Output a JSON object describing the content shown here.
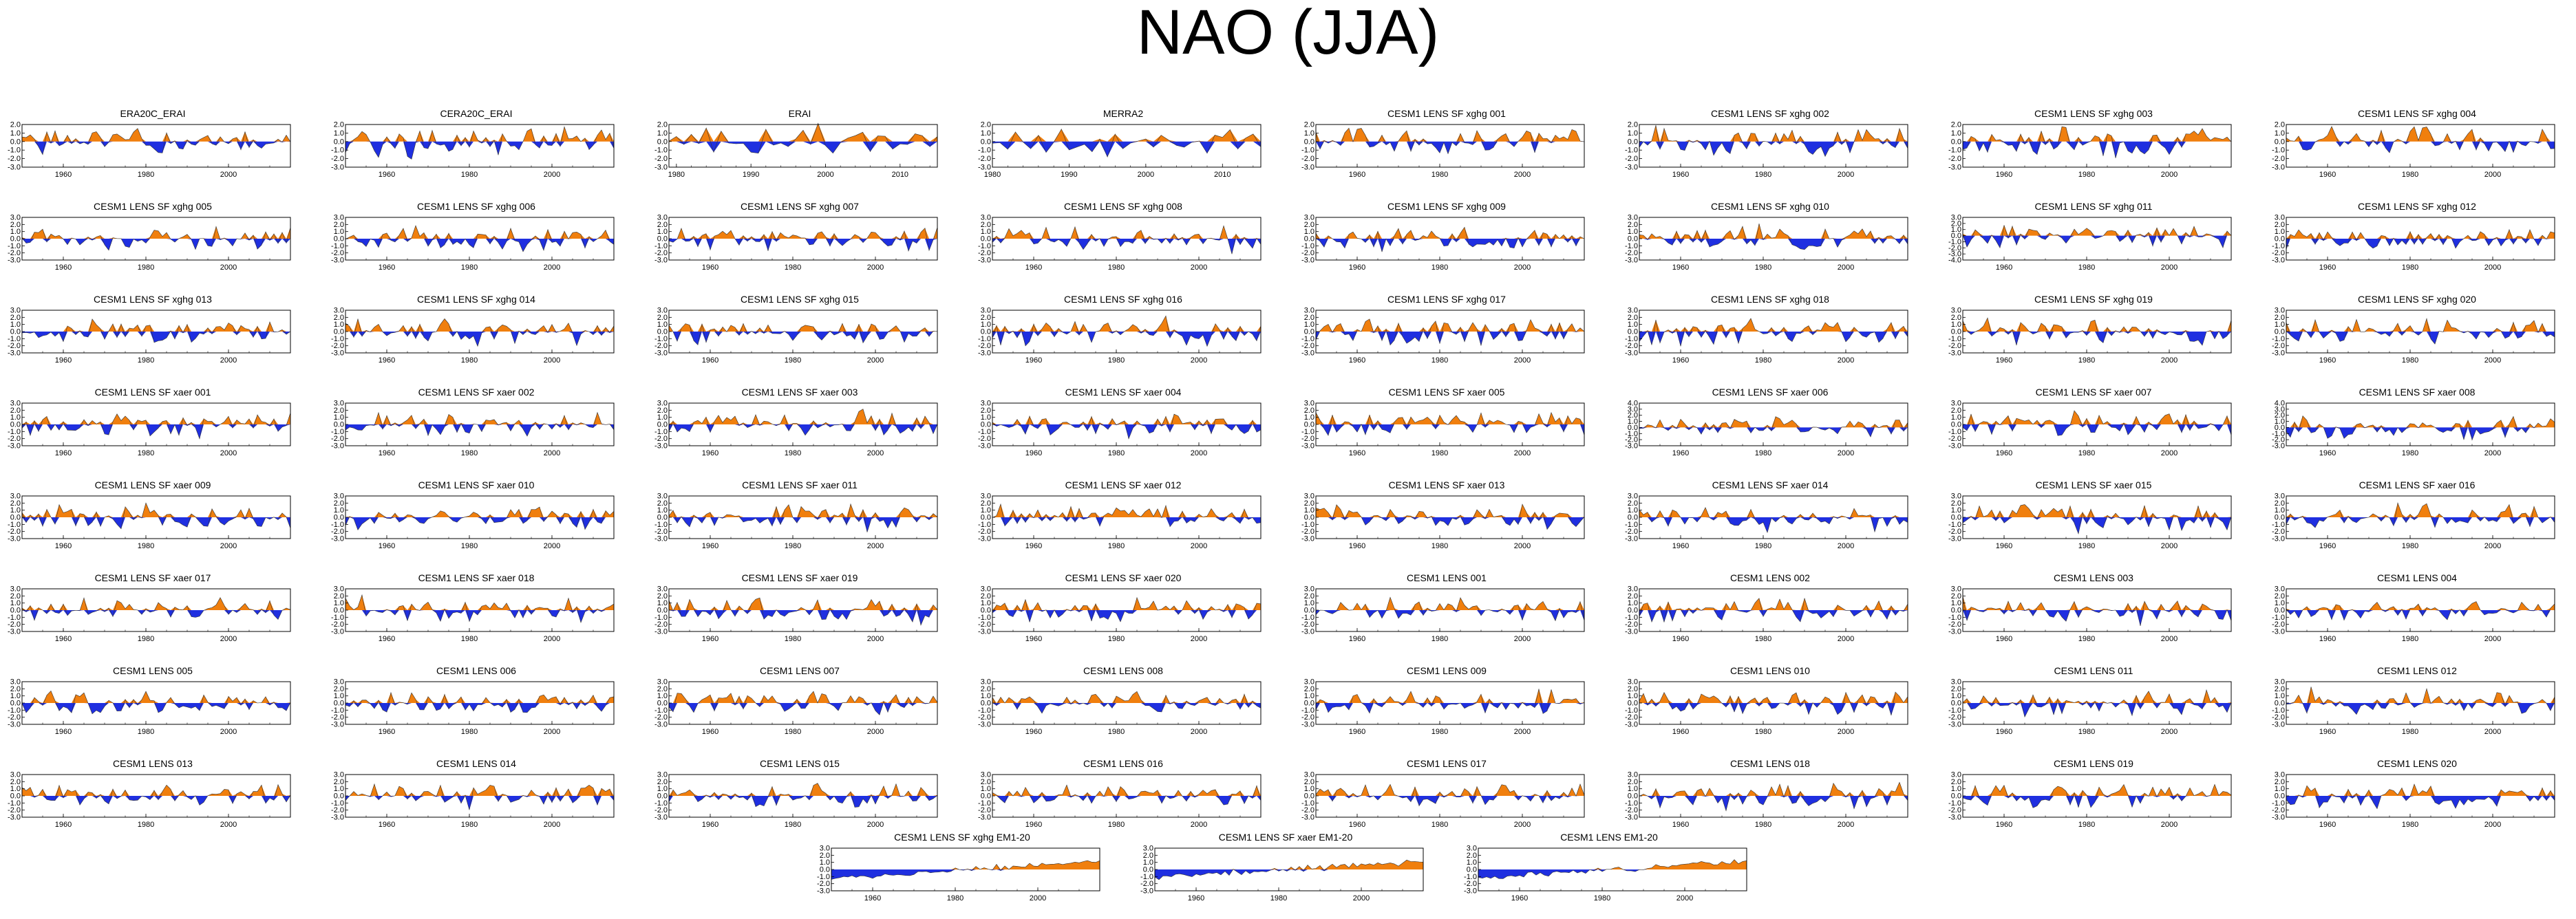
{
  "title": "NAO (JJA)",
  "colors": {
    "positive": "#f07f0e",
    "negative": "#1f2fe0",
    "axis": "#000000"
  },
  "y_ticks_default": [
    "3.0",
    "2.0",
    "1.0",
    "0.0",
    "-1.0",
    "-2.0",
    "-3.0"
  ],
  "chart_data": {
    "type": "area",
    "layout": "8 columns x 8 rows of panels plus a centered bottom row of 3 ensemble-mean panels",
    "grid": false,
    "fill_rule": "orange above zero, blue below zero",
    "ylim": [
      -3,
      3
    ],
    "panels": [
      {
        "name": "ERA20C_ERAI",
        "xlim": [
          1950,
          2015
        ],
        "xticks": [
          1960,
          1980,
          2000
        ],
        "ylim": [
          -3,
          2
        ],
        "seed": 1
      },
      {
        "name": "CERA20C_ERAI",
        "xlim": [
          1950,
          2015
        ],
        "xticks": [
          1960,
          1980,
          2000
        ],
        "ylim": [
          -3,
          2
        ],
        "seed": 2
      },
      {
        "name": "ERAI",
        "xlim": [
          1979,
          2015
        ],
        "xticks": [
          1980,
          1990,
          2000,
          2010
        ],
        "ylim": [
          -3,
          2
        ],
        "seed": 3
      },
      {
        "name": "MERRA2",
        "xlim": [
          1980,
          2015
        ],
        "xticks": [
          1980,
          1990,
          2000,
          2010
        ],
        "ylim": [
          -3,
          2
        ],
        "seed": 4
      },
      {
        "name": "CESM1 LENS SF xghg 001",
        "xlim": [
          1950,
          2015
        ],
        "xticks": [
          1960,
          1980,
          2000
        ],
        "ylim": [
          -3,
          2
        ],
        "seed": 5
      },
      {
        "name": "CESM1 LENS SF xghg 002",
        "xlim": [
          1950,
          2015
        ],
        "xticks": [
          1960,
          1980,
          2000
        ],
        "ylim": [
          -3,
          2
        ],
        "seed": 6
      },
      {
        "name": "CESM1 LENS SF xghg 003",
        "xlim": [
          1950,
          2015
        ],
        "xticks": [
          1960,
          1980,
          2000
        ],
        "ylim": [
          -3,
          2
        ],
        "seed": 7
      },
      {
        "name": "CESM1 LENS SF xghg 004",
        "xlim": [
          1950,
          2015
        ],
        "xticks": [
          1960,
          1980,
          2000
        ],
        "ylim": [
          -3,
          2
        ],
        "seed": 8
      },
      {
        "name": "CESM1 LENS SF xghg 005",
        "xlim": [
          1950,
          2015
        ],
        "xticks": [
          1960,
          1980,
          2000
        ],
        "ylim": [
          -3,
          3
        ],
        "seed": 9
      },
      {
        "name": "CESM1 LENS SF xghg 006",
        "xlim": [
          1950,
          2015
        ],
        "xticks": [
          1960,
          1980,
          2000
        ],
        "ylim": [
          -3,
          3
        ],
        "seed": 10
      },
      {
        "name": "CESM1 LENS SF xghg 007",
        "xlim": [
          1950,
          2015
        ],
        "xticks": [
          1960,
          1980,
          2000
        ],
        "ylim": [
          -3,
          3
        ],
        "seed": 11
      },
      {
        "name": "CESM1 LENS SF xghg 008",
        "xlim": [
          1950,
          2015
        ],
        "xticks": [
          1960,
          1980,
          2000
        ],
        "ylim": [
          -3,
          3
        ],
        "seed": 12
      },
      {
        "name": "CESM1 LENS SF xghg 009",
        "xlim": [
          1950,
          2015
        ],
        "xticks": [
          1960,
          1980,
          2000
        ],
        "ylim": [
          -3,
          3
        ],
        "seed": 13
      },
      {
        "name": "CESM1 LENS SF xghg 010",
        "xlim": [
          1950,
          2015
        ],
        "xticks": [
          1960,
          1980,
          2000
        ],
        "ylim": [
          -3,
          3
        ],
        "seed": 14
      },
      {
        "name": "CESM1 LENS SF xghg 011",
        "xlim": [
          1950,
          2015
        ],
        "xticks": [
          1960,
          1980,
          2000
        ],
        "ylim": [
          -4,
          3
        ],
        "seed": 15
      },
      {
        "name": "CESM1 LENS SF xghg 012",
        "xlim": [
          1950,
          2015
        ],
        "xticks": [
          1960,
          1980,
          2000
        ],
        "ylim": [
          -3,
          3
        ],
        "seed": 16
      },
      {
        "name": "CESM1 LENS SF xghg 013",
        "xlim": [
          1950,
          2015
        ],
        "xticks": [
          1960,
          1980,
          2000
        ],
        "ylim": [
          -3,
          3
        ],
        "seed": 17
      },
      {
        "name": "CESM1 LENS SF xghg 014",
        "xlim": [
          1950,
          2015
        ],
        "xticks": [
          1960,
          1980,
          2000
        ],
        "ylim": [
          -3,
          3
        ],
        "seed": 18
      },
      {
        "name": "CESM1 LENS SF xghg 015",
        "xlim": [
          1950,
          2015
        ],
        "xticks": [
          1960,
          1980,
          2000
        ],
        "ylim": [
          -3,
          3
        ],
        "seed": 19
      },
      {
        "name": "CESM1 LENS SF xghg 016",
        "xlim": [
          1950,
          2015
        ],
        "xticks": [
          1960,
          1980,
          2000
        ],
        "ylim": [
          -3,
          3
        ],
        "seed": 20
      },
      {
        "name": "CESM1 LENS SF xghg 017",
        "xlim": [
          1950,
          2015
        ],
        "xticks": [
          1960,
          1980,
          2000
        ],
        "ylim": [
          -3,
          3
        ],
        "seed": 21
      },
      {
        "name": "CESM1 LENS SF xghg 018",
        "xlim": [
          1950,
          2015
        ],
        "xticks": [
          1960,
          1980,
          2000
        ],
        "ylim": [
          -3,
          3
        ],
        "seed": 22
      },
      {
        "name": "CESM1 LENS SF xghg 019",
        "xlim": [
          1950,
          2015
        ],
        "xticks": [
          1960,
          1980,
          2000
        ],
        "ylim": [
          -3,
          3
        ],
        "seed": 23
      },
      {
        "name": "CESM1 LENS SF xghg 020",
        "xlim": [
          1950,
          2015
        ],
        "xticks": [
          1960,
          1980,
          2000
        ],
        "ylim": [
          -3,
          3
        ],
        "seed": 24
      },
      {
        "name": "CESM1 LENS SF xaer 001",
        "xlim": [
          1950,
          2015
        ],
        "xticks": [
          1960,
          1980,
          2000
        ],
        "ylim": [
          -3,
          3
        ],
        "seed": 25
      },
      {
        "name": "CESM1 LENS SF xaer 002",
        "xlim": [
          1950,
          2015
        ],
        "xticks": [
          1960,
          1980,
          2000
        ],
        "ylim": [
          -3,
          3
        ],
        "seed": 26
      },
      {
        "name": "CESM1 LENS SF xaer 003",
        "xlim": [
          1950,
          2015
        ],
        "xticks": [
          1960,
          1980,
          2000
        ],
        "ylim": [
          -3,
          3
        ],
        "seed": 27
      },
      {
        "name": "CESM1 LENS SF xaer 004",
        "xlim": [
          1950,
          2015
        ],
        "xticks": [
          1960,
          1980,
          2000
        ],
        "ylim": [
          -3,
          3
        ],
        "seed": 28
      },
      {
        "name": "CESM1 LENS SF xaer 005",
        "xlim": [
          1950,
          2015
        ],
        "xticks": [
          1960,
          1980,
          2000
        ],
        "ylim": [
          -3,
          3
        ],
        "seed": 29
      },
      {
        "name": "CESM1 LENS SF xaer 006",
        "xlim": [
          1950,
          2015
        ],
        "xticks": [
          1960,
          1980,
          2000
        ],
        "ylim": [
          -3,
          4
        ],
        "seed": 30
      },
      {
        "name": "CESM1 LENS SF xaer 007",
        "xlim": [
          1950,
          2015
        ],
        "xticks": [
          1960,
          1980,
          2000
        ],
        "ylim": [
          -3,
          3
        ],
        "seed": 31
      },
      {
        "name": "CESM1 LENS SF xaer 008",
        "xlim": [
          1950,
          2015
        ],
        "xticks": [
          1960,
          1980,
          2000
        ],
        "ylim": [
          -3,
          4
        ],
        "seed": 32
      },
      {
        "name": "CESM1 LENS SF xaer 009",
        "xlim": [
          1950,
          2015
        ],
        "xticks": [
          1960,
          1980,
          2000
        ],
        "ylim": [
          -3,
          3
        ],
        "seed": 33
      },
      {
        "name": "CESM1 LENS SF xaer 010",
        "xlim": [
          1950,
          2015
        ],
        "xticks": [
          1960,
          1980,
          2000
        ],
        "ylim": [
          -3,
          3
        ],
        "seed": 34
      },
      {
        "name": "CESM1 LENS SF xaer 011",
        "xlim": [
          1950,
          2015
        ],
        "xticks": [
          1960,
          1980,
          2000
        ],
        "ylim": [
          -3,
          3
        ],
        "seed": 35
      },
      {
        "name": "CESM1 LENS SF xaer 012",
        "xlim": [
          1950,
          2015
        ],
        "xticks": [
          1960,
          1980,
          2000
        ],
        "ylim": [
          -3,
          3
        ],
        "seed": 36
      },
      {
        "name": "CESM1 LENS SF xaer 013",
        "xlim": [
          1950,
          2015
        ],
        "xticks": [
          1960,
          1980,
          2000
        ],
        "ylim": [
          -3,
          3
        ],
        "seed": 37
      },
      {
        "name": "CESM1 LENS SF xaer 014",
        "xlim": [
          1950,
          2015
        ],
        "xticks": [
          1960,
          1980,
          2000
        ],
        "ylim": [
          -3,
          3
        ],
        "seed": 38
      },
      {
        "name": "CESM1 LENS SF xaer 015",
        "xlim": [
          1950,
          2015
        ],
        "xticks": [
          1960,
          1980,
          2000
        ],
        "ylim": [
          -3,
          3
        ],
        "seed": 39
      },
      {
        "name": "CESM1 LENS SF xaer 016",
        "xlim": [
          1950,
          2015
        ],
        "xticks": [
          1960,
          1980,
          2000
        ],
        "ylim": [
          -3,
          3
        ],
        "seed": 40
      },
      {
        "name": "CESM1 LENS SF xaer 017",
        "xlim": [
          1950,
          2015
        ],
        "xticks": [
          1960,
          1980,
          2000
        ],
        "ylim": [
          -3,
          3
        ],
        "seed": 41
      },
      {
        "name": "CESM1 LENS SF xaer 018",
        "xlim": [
          1950,
          2015
        ],
        "xticks": [
          1960,
          1980,
          2000
        ],
        "ylim": [
          -3,
          3
        ],
        "seed": 42
      },
      {
        "name": "CESM1 LENS SF xaer 019",
        "xlim": [
          1950,
          2015
        ],
        "xticks": [
          1960,
          1980,
          2000
        ],
        "ylim": [
          -3,
          3
        ],
        "seed": 43
      },
      {
        "name": "CESM1 LENS SF xaer 020",
        "xlim": [
          1950,
          2015
        ],
        "xticks": [
          1960,
          1980,
          2000
        ],
        "ylim": [
          -3,
          3
        ],
        "seed": 44
      },
      {
        "name": "CESM1 LENS 001",
        "xlim": [
          1950,
          2015
        ],
        "xticks": [
          1960,
          1980,
          2000
        ],
        "ylim": [
          -3,
          3
        ],
        "seed": 45
      },
      {
        "name": "CESM1 LENS 002",
        "xlim": [
          1950,
          2015
        ],
        "xticks": [
          1960,
          1980,
          2000
        ],
        "ylim": [
          -3,
          3
        ],
        "seed": 46
      },
      {
        "name": "CESM1 LENS 003",
        "xlim": [
          1950,
          2015
        ],
        "xticks": [
          1960,
          1980,
          2000
        ],
        "ylim": [
          -3,
          3
        ],
        "seed": 47
      },
      {
        "name": "CESM1 LENS 004",
        "xlim": [
          1950,
          2015
        ],
        "xticks": [
          1960,
          1980,
          2000
        ],
        "ylim": [
          -3,
          3
        ],
        "seed": 48
      },
      {
        "name": "CESM1 LENS 005",
        "xlim": [
          1950,
          2015
        ],
        "xticks": [
          1960,
          1980,
          2000
        ],
        "ylim": [
          -3,
          3
        ],
        "seed": 49
      },
      {
        "name": "CESM1 LENS 006",
        "xlim": [
          1950,
          2015
        ],
        "xticks": [
          1960,
          1980,
          2000
        ],
        "ylim": [
          -3,
          3
        ],
        "seed": 50
      },
      {
        "name": "CESM1 LENS 007",
        "xlim": [
          1950,
          2015
        ],
        "xticks": [
          1960,
          1980,
          2000
        ],
        "ylim": [
          -3,
          3
        ],
        "seed": 51
      },
      {
        "name": "CESM1 LENS 008",
        "xlim": [
          1950,
          2015
        ],
        "xticks": [
          1960,
          1980,
          2000
        ],
        "ylim": [
          -3,
          3
        ],
        "seed": 52
      },
      {
        "name": "CESM1 LENS 009",
        "xlim": [
          1950,
          2015
        ],
        "xticks": [
          1960,
          1980,
          2000
        ],
        "ylim": [
          -3,
          3
        ],
        "seed": 53
      },
      {
        "name": "CESM1 LENS 010",
        "xlim": [
          1950,
          2015
        ],
        "xticks": [
          1960,
          1980,
          2000
        ],
        "ylim": [
          -3,
          3
        ],
        "seed": 54
      },
      {
        "name": "CESM1 LENS 011",
        "xlim": [
          1950,
          2015
        ],
        "xticks": [
          1960,
          1980,
          2000
        ],
        "ylim": [
          -3,
          3
        ],
        "seed": 55
      },
      {
        "name": "CESM1 LENS 012",
        "xlim": [
          1950,
          2015
        ],
        "xticks": [
          1960,
          1980,
          2000
        ],
        "ylim": [
          -3,
          3
        ],
        "seed": 56
      },
      {
        "name": "CESM1 LENS 013",
        "xlim": [
          1950,
          2015
        ],
        "xticks": [
          1960,
          1980,
          2000
        ],
        "ylim": [
          -3,
          3
        ],
        "seed": 57
      },
      {
        "name": "CESM1 LENS 014",
        "xlim": [
          1950,
          2015
        ],
        "xticks": [
          1960,
          1980,
          2000
        ],
        "ylim": [
          -3,
          3
        ],
        "seed": 58
      },
      {
        "name": "CESM1 LENS 015",
        "xlim": [
          1950,
          2015
        ],
        "xticks": [
          1960,
          1980,
          2000
        ],
        "ylim": [
          -3,
          3
        ],
        "seed": 59
      },
      {
        "name": "CESM1 LENS 016",
        "xlim": [
          1950,
          2015
        ],
        "xticks": [
          1960,
          1980,
          2000
        ],
        "ylim": [
          -3,
          3
        ],
        "seed": 60
      },
      {
        "name": "CESM1 LENS 017",
        "xlim": [
          1950,
          2015
        ],
        "xticks": [
          1960,
          1980,
          2000
        ],
        "ylim": [
          -3,
          3
        ],
        "seed": 61
      },
      {
        "name": "CESM1 LENS 018",
        "xlim": [
          1950,
          2015
        ],
        "xticks": [
          1960,
          1980,
          2000
        ],
        "ylim": [
          -3,
          3
        ],
        "seed": 62
      },
      {
        "name": "CESM1 LENS 019",
        "xlim": [
          1950,
          2015
        ],
        "xticks": [
          1960,
          1980,
          2000
        ],
        "ylim": [
          -3,
          3
        ],
        "seed": 63
      },
      {
        "name": "CESM1 LENS 020",
        "xlim": [
          1950,
          2015
        ],
        "xticks": [
          1960,
          1980,
          2000
        ],
        "ylim": [
          -3,
          3
        ],
        "seed": 64
      },
      {
        "name": "CESM1 LENS SF xghg EM1-20",
        "xlim": [
          1950,
          2015
        ],
        "xticks": [
          1960,
          1980,
          2000
        ],
        "ylim": [
          -3,
          3
        ],
        "seed": 65,
        "trend": "up"
      },
      {
        "name": "CESM1 LENS SF xaer EM1-20",
        "xlim": [
          1950,
          2015
        ],
        "xticks": [
          1960,
          1980,
          2000
        ],
        "ylim": [
          -3,
          3
        ],
        "seed": 66,
        "trend": "up"
      },
      {
        "name": "CESM1 LENS EM1-20",
        "xlim": [
          1950,
          2015
        ],
        "xticks": [
          1960,
          1980,
          2000
        ],
        "ylim": [
          -3,
          3
        ],
        "seed": 67,
        "trend": "up"
      }
    ]
  }
}
